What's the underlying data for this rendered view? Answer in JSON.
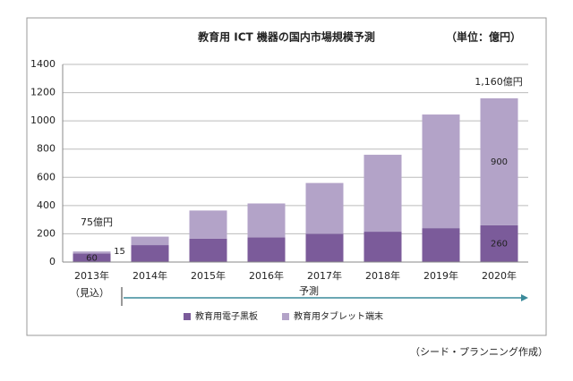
{
  "chart_data": {
    "type": "stacked_bar",
    "title": "教育用 ICT 機器の国内市場規模予測",
    "unit_note": "（単位：億円）",
    "categories": [
      "2013年",
      "2014年",
      "2015年",
      "2016年",
      "2017年",
      "2018年",
      "2019年",
      "2020年"
    ],
    "series": [
      {
        "name": "教育用電子黒板",
        "color": "#7b5b9a",
        "values": [
          60,
          120,
          165,
          175,
          200,
          215,
          240,
          260
        ],
        "value_labels": [
          "60",
          null,
          null,
          null,
          null,
          null,
          null,
          "260"
        ]
      },
      {
        "name": "教育用タブレット端末",
        "color": "#b3a3c8",
        "values": [
          15,
          60,
          200,
          240,
          360,
          545,
          805,
          900
        ],
        "value_labels": [
          "15",
          null,
          null,
          null,
          null,
          null,
          null,
          "900"
        ]
      }
    ],
    "annotations": [
      "75億円",
      "1,160億円",
      "（見込）",
      "予測"
    ],
    "source": "（シード・プランニング作成）",
    "ylim": [
      0,
      1400
    ],
    "yticks": [
      0,
      200,
      400,
      600,
      800,
      1000,
      1200,
      1400
    ],
    "grid": true
  }
}
